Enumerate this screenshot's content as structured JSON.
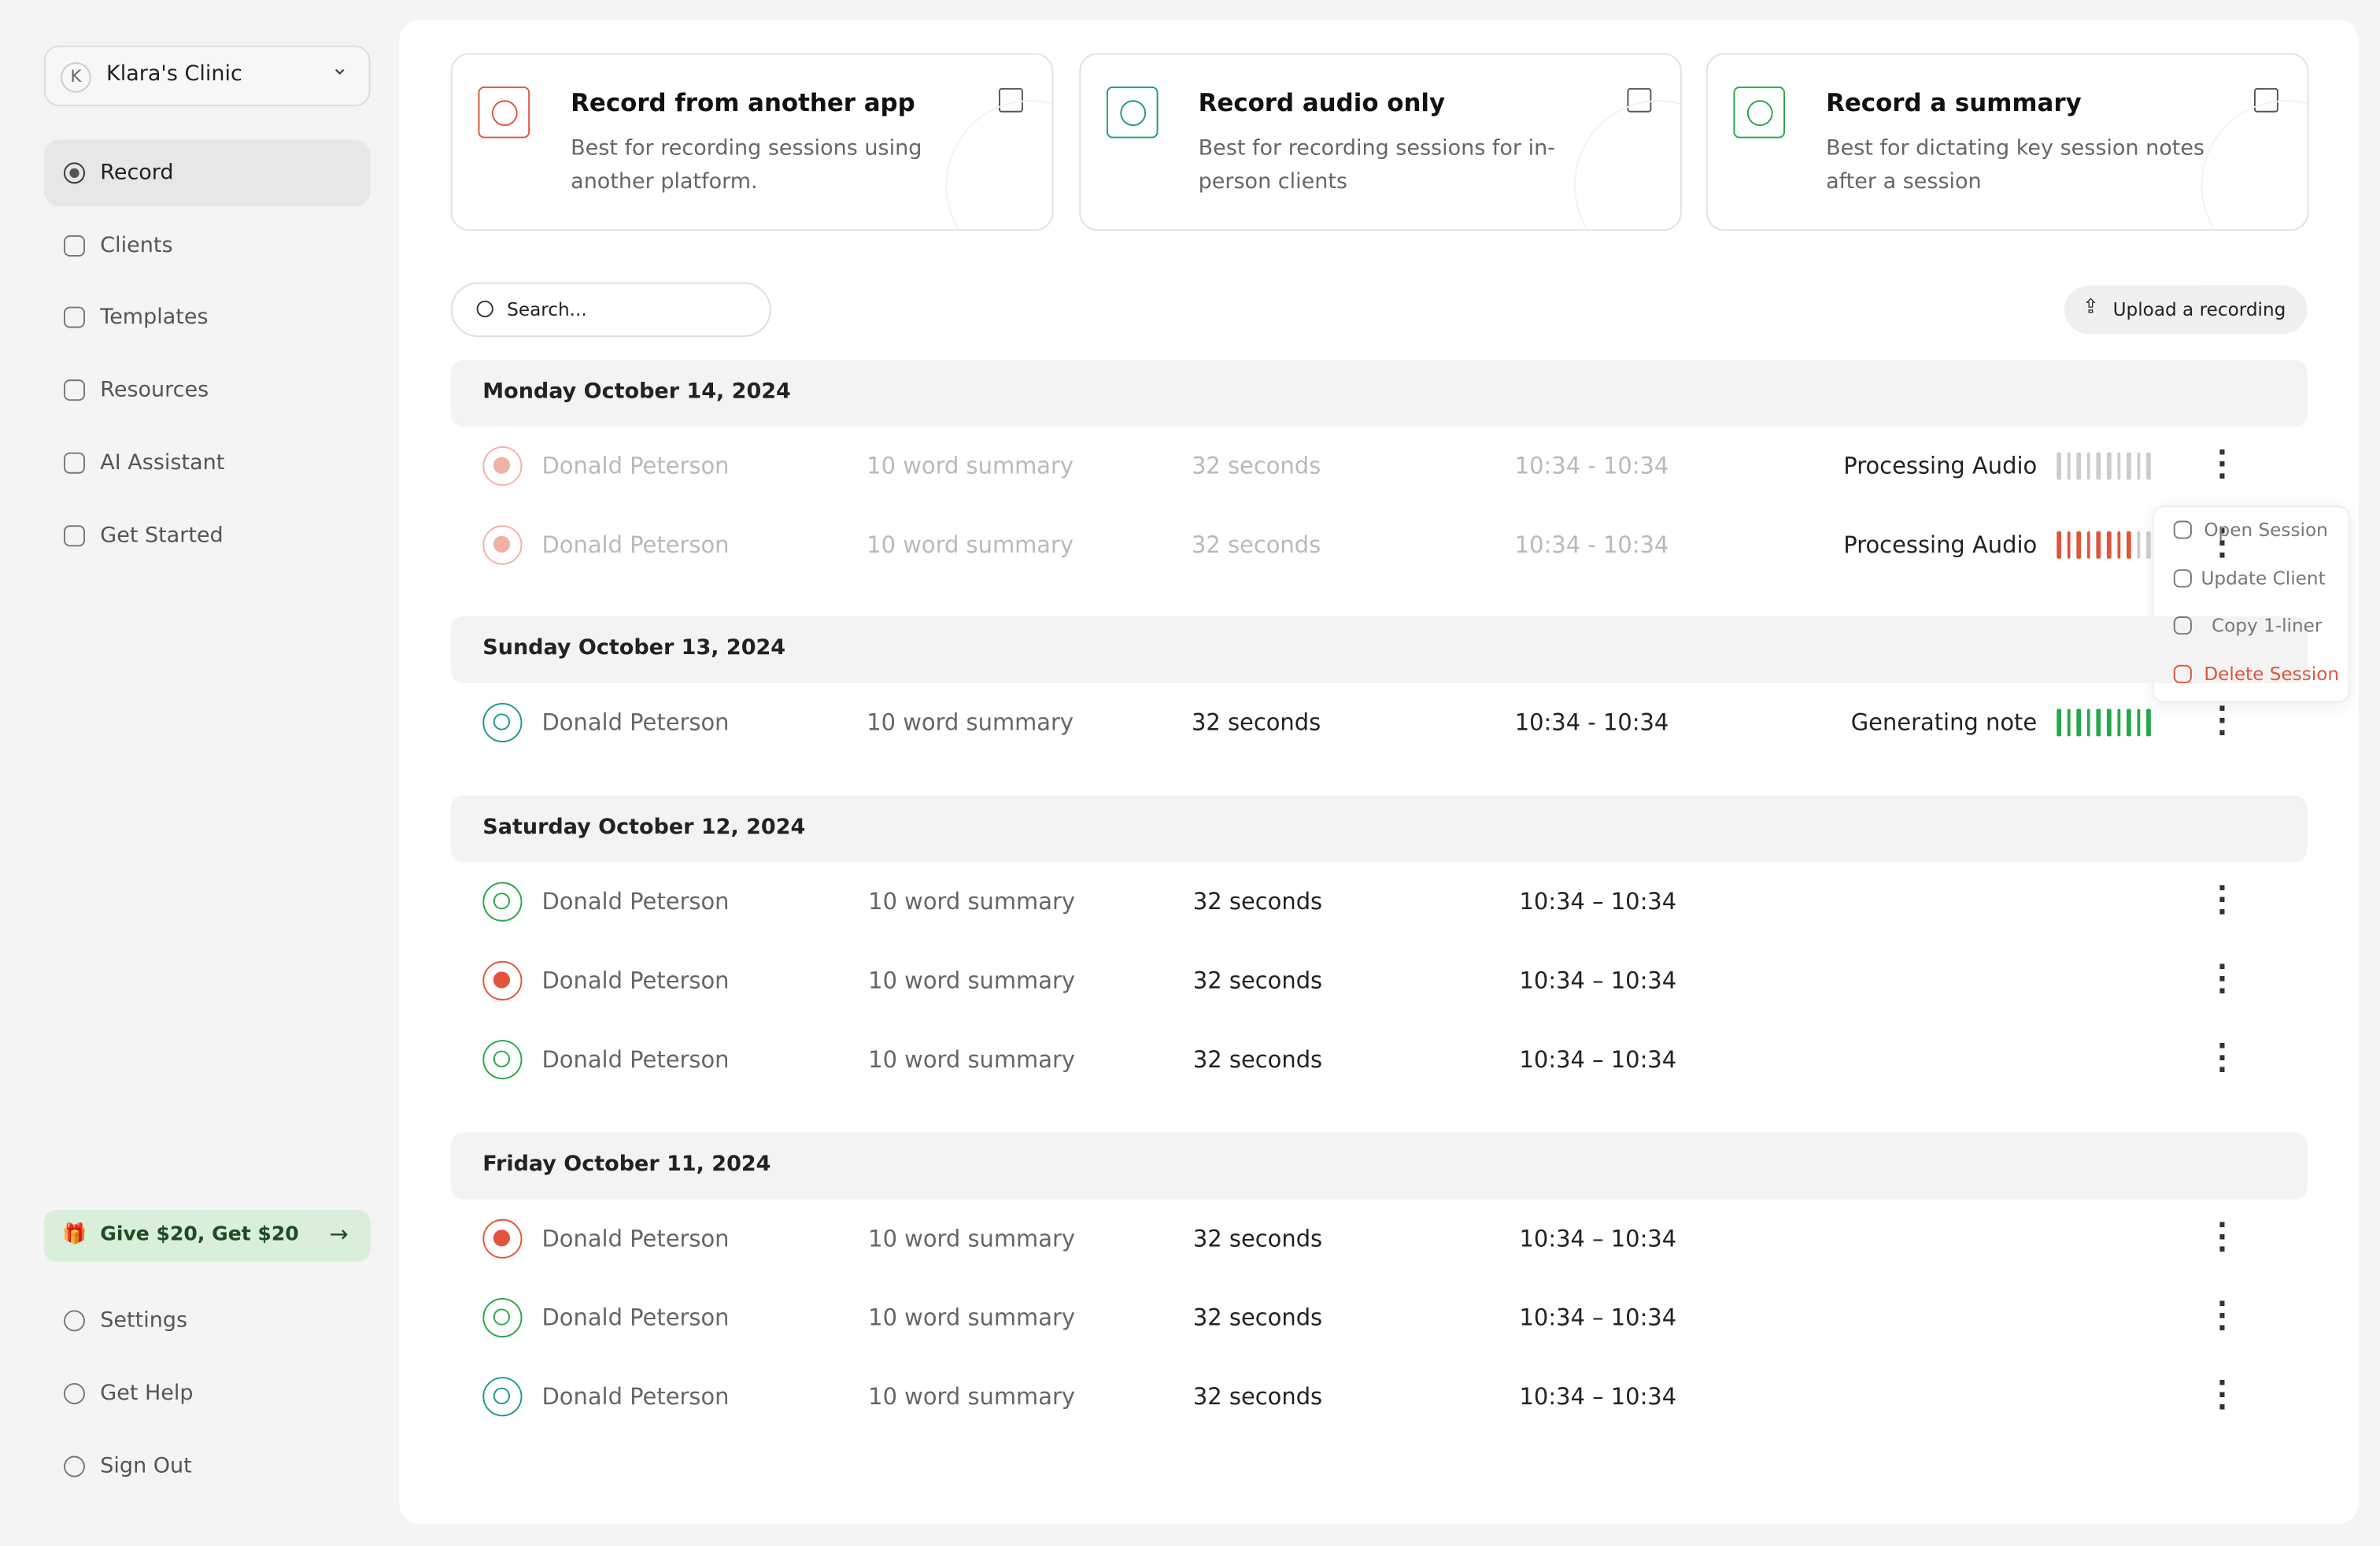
{
  "sidebar": {
    "clinic": "Klara's Clinic",
    "clinic_initial": "K",
    "nav": [
      "Record",
      "Clients",
      "Templates",
      "Resources",
      "AI Assistant",
      "Get Started"
    ],
    "promo": "Give $20, Get $20",
    "bottom_nav": [
      "Settings",
      "Get Help",
      "Sign Out"
    ]
  },
  "cards": [
    {
      "title": "Record from another app",
      "description": "Best for recording sessions using another platform."
    },
    {
      "title": "Record audio only",
      "description": "Best for recording sessions for in-person clients"
    },
    {
      "title": "Record a summary",
      "description": "Best for dictating key session notes after a session"
    }
  ],
  "search_placeholder": "Search...",
  "upload_button": "Upload a recording",
  "groups": [
    {
      "date": "Monday October 14, 2024",
      "rows": [
        {
          "name": "Donald Peterson",
          "summary": "10 word summary",
          "duration": "32 seconds",
          "time": "10:34 - 10:34",
          "status": "Processing Audio"
        },
        {
          "name": "Donald Peterson",
          "summary": "10 word summary",
          "duration": "32 seconds",
          "time": "10:34 - 10:34",
          "status": "Processing Audio"
        }
      ]
    },
    {
      "date": "Sunday October 13, 2024",
      "rows": [
        {
          "name": "Donald Peterson",
          "summary": "10 word summary",
          "duration": "32 seconds",
          "time": "10:34 - 10:34",
          "status": "Generating note"
        }
      ]
    },
    {
      "date": "Saturday October 12, 2024",
      "rows": [
        {
          "name": "Donald Peterson",
          "summary": "10 word summary",
          "duration": "32 seconds",
          "time": "10:34 – 10:34"
        },
        {
          "name": "Donald Peterson",
          "summary": "10 word summary",
          "duration": "32 seconds",
          "time": "10:34 – 10:34"
        },
        {
          "name": "Donald Peterson",
          "summary": "10 word summary",
          "duration": "32 seconds",
          "time": "10:34 – 10:34"
        }
      ]
    },
    {
      "date": "Friday October 11, 2024",
      "rows": [
        {
          "name": "Donald Peterson",
          "summary": "10 word summary",
          "duration": "32 seconds",
          "time": "10:34 – 10:34"
        },
        {
          "name": "Donald Peterson",
          "summary": "10 word summary",
          "duration": "32 seconds",
          "time": "10:34 – 10:34"
        },
        {
          "name": "Donald Peterson",
          "summary": "10 word summary",
          "duration": "32 seconds",
          "time": "10:34 – 10:34"
        }
      ]
    }
  ],
  "menu": [
    "Open Session",
    "Update Client",
    "Copy 1-liner",
    "Delete Session"
  ]
}
